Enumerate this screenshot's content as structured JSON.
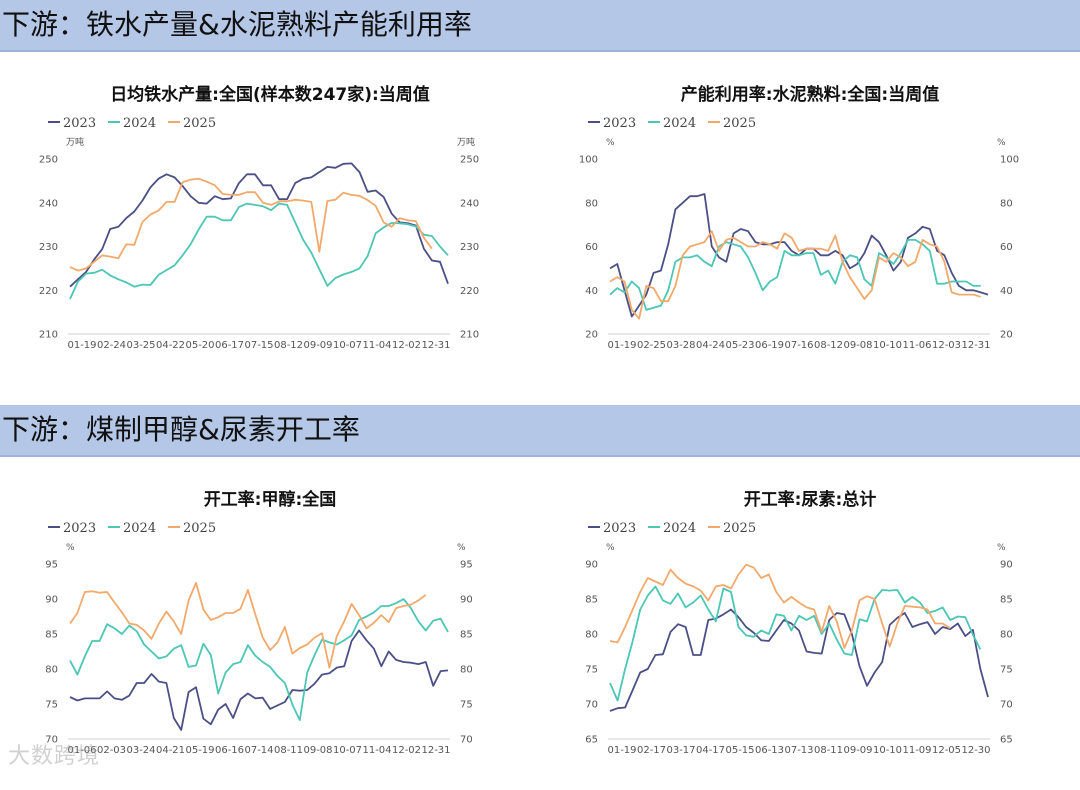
{
  "sections": [
    {
      "title": "下游：铁水产量&水泥熟料产能利用率"
    },
    {
      "title": "下游：煤制甲醇&尿素开工率"
    }
  ],
  "colors": {
    "2023": "#4b4f86",
    "2024": "#4cc6b5",
    "2025": "#f2a96b"
  },
  "watermark": "大数跨境",
  "chart_data": [
    {
      "type": "line",
      "title": "日均铁水产量:全国(样本数247家):当周值",
      "unit_left": "万吨",
      "unit_right": "万吨",
      "ylim": [
        210,
        250
      ],
      "yticks": [
        210,
        220,
        230,
        240,
        250
      ],
      "xlabels": [
        "01-19",
        "02-24",
        "03-25",
        "04-22",
        "05-20",
        "06-17",
        "07-15",
        "08-12",
        "09-09",
        "10-07",
        "11-04",
        "12-02",
        "12-31"
      ],
      "legend": "top-left",
      "series": [
        {
          "name": "2023",
          "values": [
            220.8,
            222.5,
            224.2,
            227.0,
            229.4,
            234.0,
            234.5,
            236.5,
            238.0,
            240.5,
            243.5,
            245.5,
            246.5,
            245.8,
            243.8,
            241.5,
            240.0,
            239.8,
            241.5,
            240.8,
            241.0,
            244.5,
            246.5,
            246.5,
            244.0,
            244.0,
            240.8,
            240.8,
            244.5,
            245.5,
            245.8,
            247.0,
            248.2,
            248.0,
            248.9,
            249.0,
            247.0,
            242.5,
            242.8,
            241.3,
            237.5,
            235.5,
            235.3,
            234.8,
            229.5,
            226.8,
            226.5,
            221.5
          ]
        },
        {
          "name": "2024",
          "values": [
            218.0,
            222.0,
            223.8,
            224.0,
            224.7,
            223.4,
            222.5,
            221.8,
            220.8,
            221.3,
            221.2,
            223.5,
            224.6,
            225.7,
            228.0,
            230.5,
            233.9,
            236.8,
            236.8,
            236.0,
            236.0,
            239.0,
            239.8,
            239.5,
            239.2,
            238.3,
            239.8,
            239.5,
            235.5,
            231.5,
            228.6,
            224.8,
            221.0,
            222.8,
            223.6,
            224.2,
            225.0,
            227.8,
            233.0,
            234.4,
            235.4,
            235.3,
            235.1,
            234.6,
            232.7,
            232.4,
            230.0,
            228.0
          ]
        },
        {
          "name": "2025",
          "values": [
            225.3,
            224.5,
            225.0,
            226.5,
            228.0,
            227.7,
            227.3,
            230.5,
            230.4,
            235.6,
            237.3,
            238.2,
            240.2,
            240.2,
            244.7,
            245.3,
            245.5,
            244.8,
            244.0,
            242.0,
            241.8,
            241.8,
            242.4,
            242.4,
            240.0,
            239.5,
            240.3,
            240.3,
            240.7,
            240.5,
            240.2,
            228.8,
            240.4,
            240.7,
            242.3,
            241.8,
            241.6,
            240.6,
            239.3,
            235.5,
            234.5,
            236.5,
            236.0,
            235.8,
            232.0,
            229.5
          ]
        }
      ]
    },
    {
      "type": "line",
      "title": "产能利用率:水泥熟料:全国:当周值",
      "unit_left": "%",
      "unit_right": "%",
      "ylim": [
        20,
        100
      ],
      "yticks": [
        20,
        40,
        60,
        80,
        100
      ],
      "xlabels": [
        "01-19",
        "02-25",
        "03-28",
        "04-24",
        "05-23",
        "06-19",
        "07-16",
        "08-12",
        "09-08",
        "10-10",
        "11-06",
        "12-03",
        "12-31"
      ],
      "legend": "top-left",
      "series": [
        {
          "name": "2023",
          "values": [
            50,
            52,
            40,
            28,
            33,
            38,
            48,
            49,
            61,
            77,
            80,
            83,
            83,
            84,
            60,
            55,
            53,
            66,
            68,
            67,
            62,
            61,
            61,
            62,
            62,
            58,
            56,
            59,
            59,
            56,
            56,
            58,
            56,
            50,
            52,
            57,
            65,
            62,
            56,
            49,
            53,
            64,
            66,
            69,
            68,
            58,
            56,
            48,
            42,
            40,
            40,
            39,
            38
          ]
        },
        {
          "name": "2024",
          "values": [
            38,
            41,
            39,
            44,
            41,
            31,
            32,
            33,
            40,
            53,
            55,
            55,
            56,
            53,
            51,
            60,
            62,
            61,
            60,
            55,
            48,
            40,
            44,
            46,
            58,
            56,
            56,
            57,
            57,
            47,
            49,
            43,
            53,
            56,
            55,
            45,
            42,
            57,
            55,
            52,
            57,
            63,
            63,
            61,
            58,
            43,
            43,
            44,
            44,
            44,
            42,
            42
          ]
        },
        {
          "name": "2025",
          "values": [
            44,
            46,
            44,
            31,
            27,
            42,
            41,
            35,
            35,
            42,
            56,
            60,
            61,
            62,
            67,
            58,
            63,
            64,
            62,
            60,
            60,
            62,
            61,
            59,
            66,
            64,
            58,
            59,
            59,
            59,
            58,
            65,
            53,
            46,
            41,
            36,
            40,
            55,
            53,
            57,
            55,
            51,
            53,
            63,
            61,
            60,
            53,
            39,
            38,
            38,
            38,
            37
          ]
        }
      ]
    },
    {
      "type": "line",
      "title": "开工率:甲醇:全国",
      "unit_left": "%",
      "unit_right": "%",
      "ylim": [
        70,
        95
      ],
      "yticks": [
        70,
        75,
        80,
        85,
        90,
        95
      ],
      "xlabels": [
        "01-06",
        "02-03",
        "03-24",
        "04-21",
        "05-19",
        "06-16",
        "07-14",
        "08-11",
        "09-08",
        "10-07",
        "11-04",
        "12-02",
        "12-31"
      ],
      "legend": "top-left",
      "series": [
        {
          "name": "2023",
          "values": [
            76.0,
            75.5,
            75.8,
            75.8,
            75.8,
            76.8,
            75.8,
            75.6,
            76.2,
            78.0,
            78.0,
            79.3,
            78.2,
            78.0,
            73.0,
            71.3,
            76.7,
            77.4,
            72.9,
            72.1,
            74.2,
            75.0,
            73.0,
            75.7,
            76.5,
            75.8,
            75.9,
            74.3,
            74.8,
            75.3,
            77.0,
            76.9,
            77.0,
            77.9,
            79.2,
            79.4,
            80.2,
            80.4,
            84.0,
            85.5,
            84.1,
            82.9,
            80.4,
            82.5,
            81.3,
            81.0,
            80.9,
            80.7,
            81.0,
            77.6,
            79.7,
            79.8
          ]
        },
        {
          "name": "2024",
          "values": [
            81.2,
            79.2,
            81.8,
            84.0,
            84.0,
            86.4,
            85.8,
            85.0,
            86.2,
            85.4,
            83.5,
            82.5,
            81.5,
            81.8,
            82.9,
            83.4,
            80.3,
            80.5,
            83.6,
            82.0,
            76.5,
            79.5,
            80.7,
            81.0,
            83.4,
            81.9,
            81.0,
            80.3,
            79.0,
            78.0,
            74.9,
            72.7,
            79.5,
            82.0,
            84.2,
            83.8,
            83.5,
            84.1,
            84.8,
            87.0,
            87.5,
            88.1,
            89.0,
            89.0,
            89.4,
            90.0,
            88.7,
            86.8,
            85.5,
            86.9,
            87.2,
            85.3
          ]
        },
        {
          "name": "2025",
          "values": [
            86.5,
            88.0,
            91.0,
            91.1,
            90.9,
            91.0,
            89.5,
            88.1,
            86.5,
            86.3,
            85.5,
            84.3,
            86.5,
            88.2,
            86.8,
            85.0,
            89.8,
            92.3,
            88.5,
            87.0,
            87.4,
            88.0,
            88.0,
            88.6,
            91.3,
            87.8,
            84.5,
            82.7,
            83.8,
            86.0,
            82.2,
            83.0,
            83.5,
            84.5,
            85.1,
            80.2,
            84.7,
            86.8,
            89.3,
            87.7,
            85.8,
            86.6,
            87.7,
            86.7,
            88.7,
            89.0,
            89.2,
            89.8,
            90.6
          ]
        }
      ]
    },
    {
      "type": "line",
      "title": "开工率:尿素:总计",
      "unit_left": "%",
      "unit_right": "%",
      "ylim": [
        65,
        90
      ],
      "yticks": [
        65,
        70,
        75,
        80,
        85,
        90
      ],
      "xlabels": [
        "01-19",
        "02-17",
        "03-17",
        "04-17",
        "05-15",
        "06-13",
        "07-13",
        "08-11",
        "09-09",
        "10-10",
        "11-09",
        "12-05",
        "12-30"
      ],
      "legend": "top-left",
      "series": [
        {
          "name": "2023",
          "values": [
            69.0,
            69.4,
            69.5,
            72.0,
            74.5,
            75.0,
            77.0,
            77.1,
            80.3,
            81.4,
            81.0,
            77.0,
            77.0,
            82.0,
            82.2,
            82.8,
            83.5,
            82.4,
            81.0,
            80.2,
            79.1,
            79.0,
            80.5,
            82.0,
            81.5,
            80.5,
            77.5,
            77.3,
            77.2,
            82.0,
            83.0,
            82.8,
            80.0,
            75.4,
            72.6,
            74.5,
            76.0,
            81.3,
            82.3,
            83.0,
            81.0,
            81.4,
            81.7,
            80.0,
            81.0,
            80.7,
            81.5,
            79.7,
            80.6,
            75.0,
            71.0
          ]
        },
        {
          "name": "2024",
          "values": [
            73.0,
            70.5,
            75.0,
            79.0,
            83.5,
            85.5,
            86.8,
            84.8,
            84.3,
            85.8,
            83.8,
            84.5,
            85.5,
            83.5,
            81.8,
            86.5,
            86.0,
            81.0,
            79.8,
            79.6,
            80.5,
            80.0,
            82.8,
            82.6,
            80.5,
            82.6,
            82.0,
            82.6,
            80.0,
            81.5,
            79.2,
            77.2,
            77.0,
            82.1,
            81.8,
            85.0,
            86.3,
            86.2,
            86.3,
            84.5,
            85.3,
            84.5,
            83.0,
            83.3,
            83.8,
            82.0,
            82.5,
            82.4,
            79.9,
            77.8
          ]
        },
        {
          "name": "2025",
          "values": [
            79.0,
            78.8,
            81.0,
            83.5,
            86.0,
            88.0,
            87.5,
            87.0,
            89.2,
            88.0,
            87.2,
            86.8,
            86.2,
            84.8,
            86.8,
            87.0,
            86.5,
            88.5,
            89.9,
            89.5,
            88.0,
            88.5,
            86.0,
            84.5,
            85.3,
            84.5,
            83.8,
            83.5,
            80.3,
            84.0,
            81.8,
            78.0,
            80.5,
            84.8,
            85.4,
            85.0,
            81.5,
            78.2,
            81.5,
            84.0,
            83.9,
            83.8,
            83.5,
            81.5,
            81.5,
            80.8
          ]
        }
      ]
    }
  ]
}
